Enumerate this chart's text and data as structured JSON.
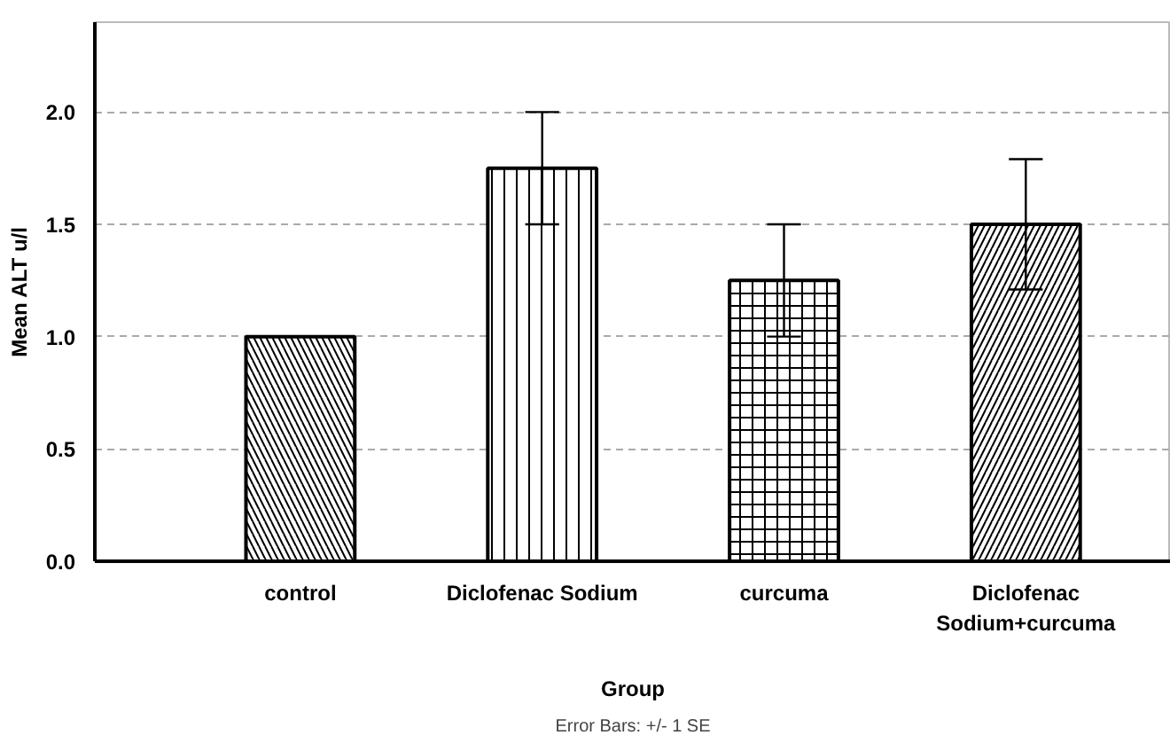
{
  "chart_data": {
    "type": "bar",
    "categories": [
      "control",
      "Diclofenac Sodium",
      "curcuma",
      "Diclofenac Sodium+curcuma"
    ],
    "values": [
      1.0,
      1.75,
      1.25,
      1.5
    ],
    "errors": [
      null,
      0.25,
      0.25,
      [
        1.21,
        1.79
      ]
    ],
    "color": "#ffffff",
    "xlabel": "Group",
    "ylabel": "Mean ALT u/l",
    "ylim": [
      0,
      2.4
    ],
    "yticks": [
      {
        "value": 0,
        "label": "0.0"
      },
      {
        "value": 0.5,
        "label": "0.5"
      },
      {
        "value": 1,
        "label": "1.0"
      },
      {
        "value": 1.5,
        "label": "1.5"
      },
      {
        "value": 2,
        "label": "2.0"
      }
    ],
    "grid": "y",
    "annotations": [
      "Error Bars: +/- 1 SE"
    ]
  }
}
